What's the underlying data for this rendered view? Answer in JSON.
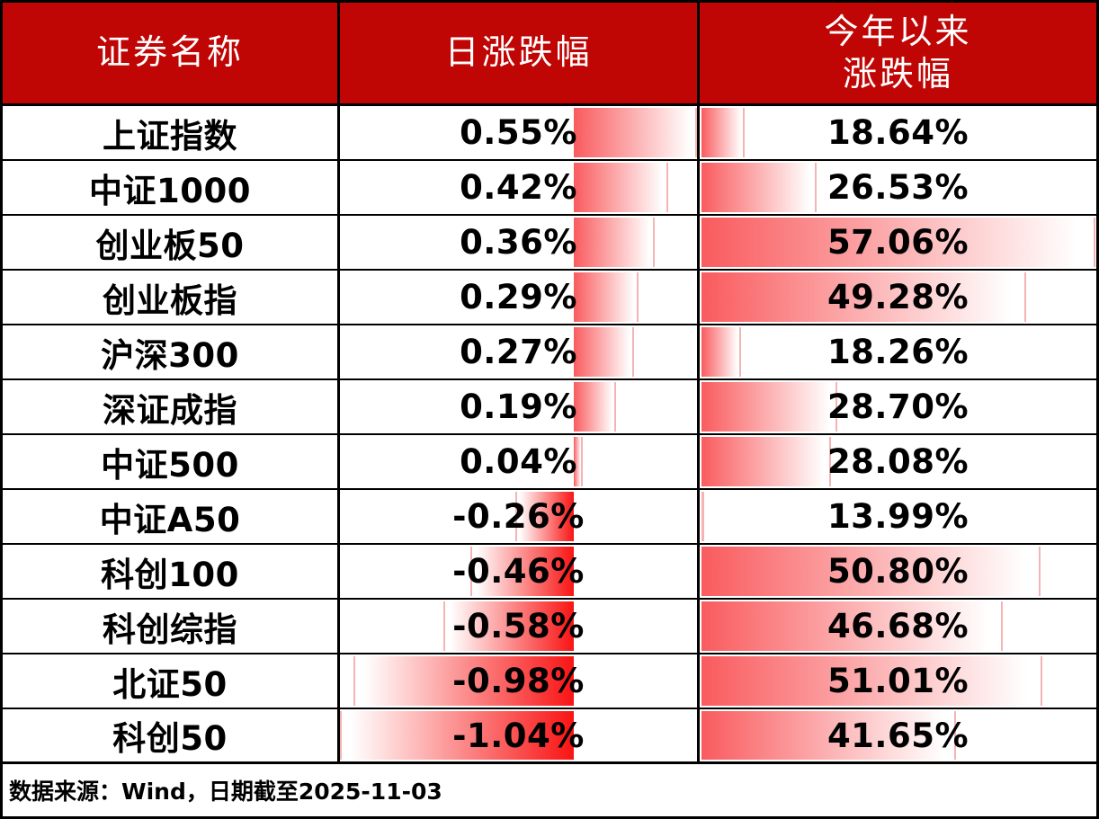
{
  "table": {
    "headers": {
      "name": "证券名称",
      "daily": "日涨跌幅",
      "ytd": "今年以来\n涨跌幅"
    },
    "rows": [
      {
        "name": "上证指数",
        "daily_label": "0.55%",
        "daily": 0.55,
        "ytd_label": "18.64%",
        "ytd": 18.64
      },
      {
        "name": "中证1000",
        "daily_label": "0.42%",
        "daily": 0.42,
        "ytd_label": "26.53%",
        "ytd": 26.53
      },
      {
        "name": "创业板50",
        "daily_label": "0.36%",
        "daily": 0.36,
        "ytd_label": "57.06%",
        "ytd": 57.06
      },
      {
        "name": "创业板指",
        "daily_label": "0.29%",
        "daily": 0.29,
        "ytd_label": "49.28%",
        "ytd": 49.28
      },
      {
        "name": "沪深300",
        "daily_label": "0.27%",
        "daily": 0.27,
        "ytd_label": "18.26%",
        "ytd": 18.26
      },
      {
        "name": "深证成指",
        "daily_label": "0.19%",
        "daily": 0.19,
        "ytd_label": "28.70%",
        "ytd": 28.7
      },
      {
        "name": "中证500",
        "daily_label": "0.04%",
        "daily": 0.04,
        "ytd_label": "28.08%",
        "ytd": 28.08
      },
      {
        "name": "中证A50",
        "daily_label": "-0.26%",
        "daily": -0.26,
        "ytd_label": "13.99%",
        "ytd": 13.99
      },
      {
        "name": "科创100",
        "daily_label": "-0.46%",
        "daily": -0.46,
        "ytd_label": "50.80%",
        "ytd": 50.8
      },
      {
        "name": "科创综指",
        "daily_label": "-0.58%",
        "daily": -0.58,
        "ytd_label": "46.68%",
        "ytd": 46.68
      },
      {
        "name": "北证50",
        "daily_label": "-0.98%",
        "daily": -0.98,
        "ytd_label": "51.01%",
        "ytd": 51.01
      },
      {
        "name": "科创50",
        "daily_label": "-1.04%",
        "daily": -1.04,
        "ytd_label": "41.65%",
        "ytd": 41.65
      }
    ],
    "footer_note": "数据来源：Wind，日期截至2025-11-03"
  },
  "colors": {
    "header_bg": "#C00505",
    "header_text": "#FFFFFF",
    "positive_bar_base": "#F95B5E",
    "negative_bar_base": "#F91414",
    "bar_tip_border": "#F5B4B4",
    "grid": "#000000",
    "body_text": "#000000"
  },
  "databar_scales": {
    "daily": {
      "min": -1.04,
      "max": 0.55
    },
    "ytd": {
      "min": 13.99,
      "max": 57.06
    }
  },
  "chart_data": {
    "type": "table",
    "title": "",
    "columns": [
      "证券名称",
      "日涨跌幅",
      "今年以来涨跌幅"
    ],
    "rows": [
      [
        "上证指数",
        "0.55%",
        "18.64%"
      ],
      [
        "中证1000",
        "0.42%",
        "26.53%"
      ],
      [
        "创业板50",
        "0.36%",
        "57.06%"
      ],
      [
        "创业板指",
        "0.29%",
        "49.28%"
      ],
      [
        "沪深300",
        "0.27%",
        "18.26%"
      ],
      [
        "深证成指",
        "0.19%",
        "28.70%"
      ],
      [
        "中证500",
        "0.04%",
        "28.08%"
      ],
      [
        "中证A50",
        "-0.26%",
        "13.99%"
      ],
      [
        "科创100",
        "-0.46%",
        "50.80%"
      ],
      [
        "科创综指",
        "-0.58%",
        "46.68%"
      ],
      [
        "北证50",
        "-0.98%",
        "51.01%"
      ],
      [
        "科创50",
        "-1.04%",
        "41.65%"
      ]
    ],
    "series": [
      {
        "name": "日涨跌幅",
        "values": [
          0.55,
          0.42,
          0.36,
          0.29,
          0.27,
          0.19,
          0.04,
          -0.26,
          -0.46,
          -0.58,
          -0.98,
          -1.04
        ]
      },
      {
        "name": "今年以来涨跌幅",
        "values": [
          18.64,
          26.53,
          57.06,
          49.28,
          18.26,
          28.7,
          28.08,
          13.99,
          50.8,
          46.68,
          51.01,
          41.65
        ]
      }
    ],
    "categories": [
      "上证指数",
      "中证1000",
      "创业板50",
      "创业板指",
      "沪深300",
      "深证成指",
      "中证500",
      "中证A50",
      "科创100",
      "科创综指",
      "北证50",
      "科创50"
    ],
    "annotations": [
      "数据来源：Wind，日期截至2025-11-03"
    ],
    "layout": {
      "databars": true,
      "daily_axis_range": [
        -1.04,
        0.55
      ],
      "ytd_axis_range": [
        13.99,
        57.06
      ]
    }
  }
}
